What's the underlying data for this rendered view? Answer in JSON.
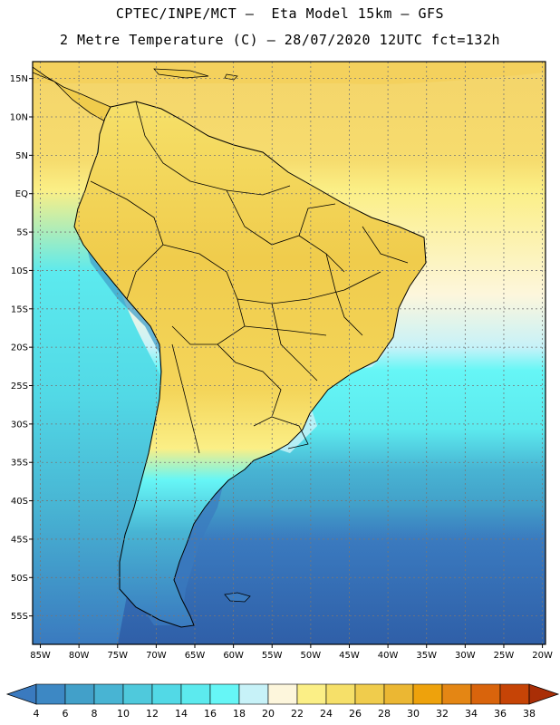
{
  "title_line1": "CPTEC/INPE/MCT –  Eta Model 15km – GFS",
  "title_line2": "2 Metre Temperature (C) – 28/07/2020 12UTC fct=132h",
  "lat_labels": [
    "15N",
    "10N",
    "5N",
    "EQ",
    "5S",
    "10S",
    "15S",
    "20S",
    "25S",
    "30S",
    "35S",
    "40S",
    "45S",
    "50S",
    "55S"
  ],
  "lat_values": [
    15,
    10,
    5,
    0,
    -5,
    -10,
    -15,
    -20,
    -25,
    -30,
    -35,
    -40,
    -45,
    -50,
    -55
  ],
  "lon_labels": [
    "85W",
    "80W",
    "75W",
    "70W",
    "65W",
    "60W",
    "55W",
    "50W",
    "45W",
    "40W",
    "35W",
    "30W",
    "25W",
    "20W"
  ],
  "lon_values": [
    -85,
    -80,
    -75,
    -70,
    -65,
    -60,
    -55,
    -50,
    -45,
    -40,
    -35,
    -30,
    -25,
    -20
  ],
  "extent": {
    "lon_min": -86,
    "lon_max": -19.6,
    "lat_min": -58.7,
    "lat_max": 17.2
  },
  "colorbar": {
    "labels": [
      "4",
      "6",
      "8",
      "10",
      "12",
      "14",
      "16",
      "18",
      "20",
      "22",
      "24",
      "26",
      "28",
      "30",
      "32",
      "34",
      "36",
      "38"
    ],
    "colors": [
      "#3a7abf",
      "#3d88c4",
      "#42a0c9",
      "#48b4d3",
      "#4fc9dc",
      "#52d9e6",
      "#5ceaee",
      "#66f6f6",
      "#c7f2f8",
      "#fdf6dc",
      "#fbef86",
      "#f6e069",
      "#f0cc4c",
      "#ebb733",
      "#eea20c",
      "#e48614",
      "#d9640c",
      "#c64406",
      "#a92e06"
    ]
  }
}
